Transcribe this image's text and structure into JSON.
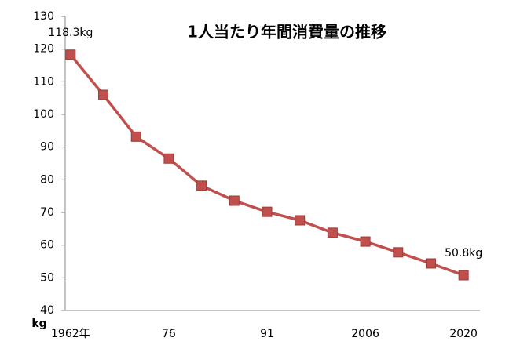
{
  "chart_data": {
    "type": "line",
    "title": "1人当たり年間消費量の推移",
    "y_label": "kg",
    "categories": [
      "1962年",
      null,
      null,
      "76",
      null,
      null,
      "91",
      null,
      null,
      "2006",
      null,
      null,
      "2020"
    ],
    "values": [
      118.3,
      106,
      93.2,
      86.5,
      78.2,
      73.6,
      70.2,
      67.6,
      63.8,
      61.1,
      57.8,
      54.4,
      50.8
    ],
    "value_labels": [
      "118.3kg",
      null,
      null,
      null,
      null,
      null,
      null,
      null,
      null,
      null,
      null,
      null,
      "50.8kg"
    ],
    "color": "#c0504d",
    "ylim": [
      40,
      130
    ],
    "yticks": [
      40,
      50,
      60,
      70,
      80,
      90,
      100,
      110,
      120,
      130
    ],
    "grid": false
  }
}
